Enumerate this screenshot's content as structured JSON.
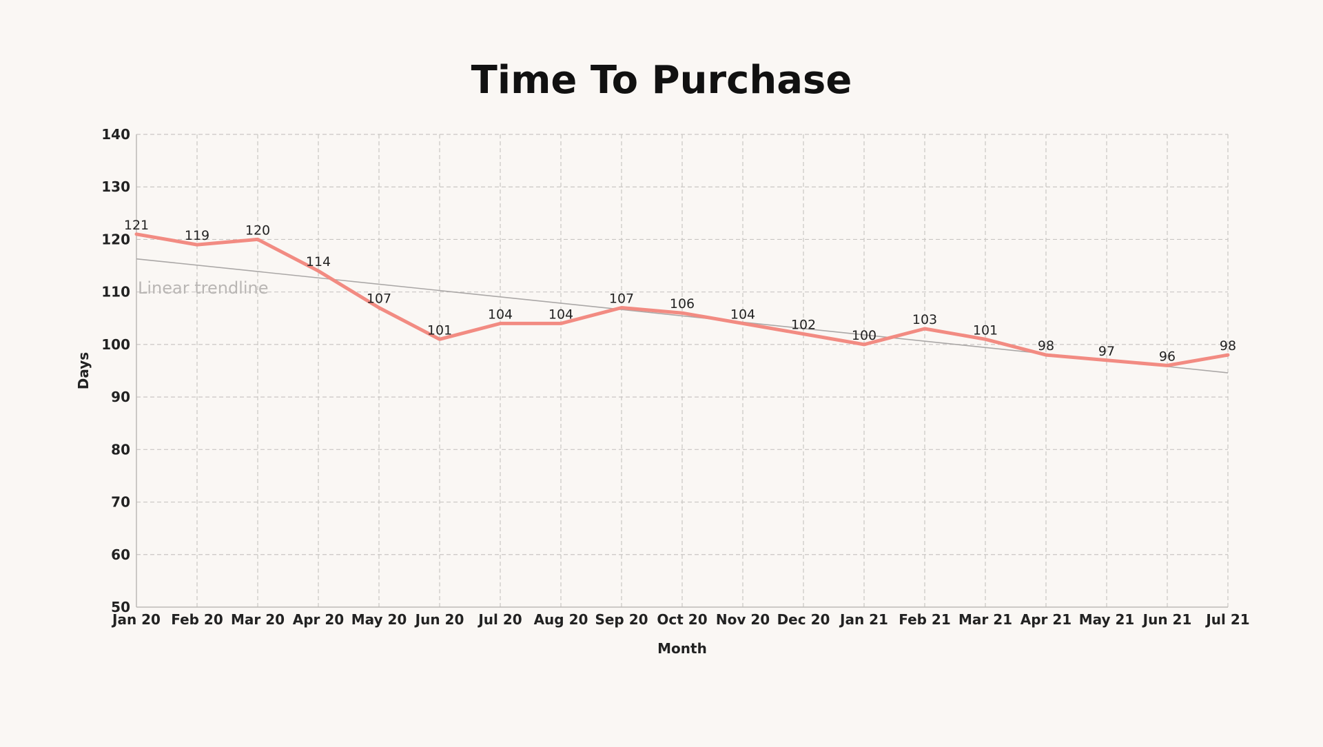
{
  "chart_data": {
    "type": "line",
    "title": "Time To Purchase",
    "xlabel": "Month",
    "ylabel": "Days",
    "ylim": [
      50,
      140
    ],
    "yticks": [
      50,
      60,
      70,
      80,
      90,
      100,
      110,
      120,
      130,
      140
    ],
    "grid": true,
    "categories": [
      "Jan 20",
      "Feb 20",
      "Mar 20",
      "Apr 20",
      "May 20",
      "Jun 20",
      "Jul 20",
      "Aug 20",
      "Sep 20",
      "Oct 20",
      "Nov 20",
      "Dec 20",
      "Jan 21",
      "Feb 21",
      "Mar 21",
      "Apr 21",
      "May 21",
      "Jun 21",
      "Jul 21"
    ],
    "series": [
      {
        "values": [
          121,
          119,
          120,
          114,
          107,
          101,
          104,
          104,
          107,
          106,
          104,
          102,
          100,
          103,
          101,
          98,
          97,
          96,
          98
        ],
        "color": "#f28b82"
      }
    ],
    "trendline": {
      "label": "Linear trendline",
      "type": "linear",
      "start": 116.3,
      "end": 94.6,
      "color": "#aaa7a6"
    }
  }
}
